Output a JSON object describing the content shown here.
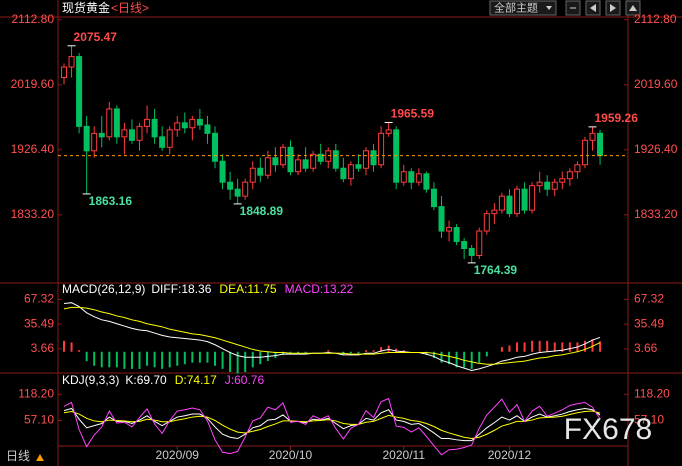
{
  "header": {
    "symbol": "现货黄金",
    "period": "<日线>",
    "theme_button": "全部主题"
  },
  "footer": {
    "period": "日线"
  },
  "watermark": "FX678",
  "chart_data": [
    {
      "type": "candlestick",
      "up_color": "#ff3c3c",
      "down_color": "#00c060",
      "last_line_color": "#ff9900",
      "ylim": [
        1737,
        2121
      ],
      "yticks": [
        {
          "value": 2112.8,
          "label": "2112.80"
        },
        {
          "value": 2019.6,
          "label": "2019.60"
        },
        {
          "value": 1926.4,
          "label": "1926.40"
        },
        {
          "value": 1833.2,
          "label": "1833.20"
        }
      ],
      "candles": [
        [
          2030,
          2050,
          2020,
          2045
        ],
        [
          2045,
          2075.47,
          2030,
          2060
        ],
        [
          2060,
          2065,
          1950,
          1960
        ],
        [
          1960,
          1975,
          1863.16,
          1925
        ],
        [
          1925,
          1960,
          1915,
          1950
        ],
        [
          1950,
          1975,
          1930,
          1945
        ],
        [
          1945,
          1995,
          1940,
          1985
        ],
        [
          1985,
          1990,
          1935,
          1945
        ],
        [
          1945,
          1965,
          1920,
          1955
        ],
        [
          1955,
          1970,
          1935,
          1940
        ],
        [
          1940,
          1965,
          1925,
          1960
        ],
        [
          1960,
          1990,
          1950,
          1970
        ],
        [
          1970,
          1985,
          1935,
          1945
        ],
        [
          1945,
          1960,
          1925,
          1930
        ],
        [
          1930,
          1960,
          1920,
          1955
        ],
        [
          1955,
          1975,
          1945,
          1965
        ],
        [
          1965,
          1980,
          1950,
          1958
        ],
        [
          1958,
          1975,
          1940,
          1970
        ],
        [
          1970,
          1985,
          1955,
          1962
        ],
        [
          1962,
          1975,
          1935,
          1950
        ],
        [
          1950,
          1960,
          1900,
          1910
        ],
        [
          1910,
          1920,
          1870,
          1880
        ],
        [
          1880,
          1895,
          1855,
          1870
        ],
        [
          1870,
          1885,
          1848.89,
          1860
        ],
        [
          1860,
          1885,
          1855,
          1880
        ],
        [
          1880,
          1910,
          1870,
          1900
        ],
        [
          1900,
          1915,
          1880,
          1890
        ],
        [
          1890,
          1925,
          1885,
          1915
        ],
        [
          1915,
          1930,
          1895,
          1905
        ],
        [
          1905,
          1935,
          1900,
          1930
        ],
        [
          1930,
          1940,
          1890,
          1895
        ],
        [
          1895,
          1920,
          1890,
          1912
        ],
        [
          1912,
          1930,
          1895,
          1900
        ],
        [
          1900,
          1925,
          1895,
          1920
        ],
        [
          1920,
          1935,
          1905,
          1910
        ],
        [
          1910,
          1930,
          1900,
          1925
        ],
        [
          1925,
          1935,
          1895,
          1900
        ],
        [
          1900,
          1915,
          1880,
          1885
        ],
        [
          1885,
          1910,
          1875,
          1905
        ],
        [
          1905,
          1920,
          1895,
          1900
        ],
        [
          1900,
          1930,
          1890,
          1925
        ],
        [
          1925,
          1935,
          1895,
          1905
        ],
        [
          1905,
          1960,
          1900,
          1950
        ],
        [
          1950,
          1965.59,
          1945,
          1955
        ],
        [
          1955,
          1960,
          1870,
          1880
        ],
        [
          1880,
          1905,
          1875,
          1895
        ],
        [
          1895,
          1900,
          1870,
          1880
        ],
        [
          1880,
          1900,
          1875,
          1892
        ],
        [
          1892,
          1895,
          1865,
          1870
        ],
        [
          1870,
          1880,
          1840,
          1845
        ],
        [
          1845,
          1860,
          1800,
          1810
        ],
        [
          1810,
          1825,
          1795,
          1815
        ],
        [
          1815,
          1820,
          1790,
          1795
        ],
        [
          1795,
          1800,
          1770,
          1785
        ],
        [
          1785,
          1790,
          1764.39,
          1775
        ],
        [
          1775,
          1815,
          1770,
          1810
        ],
        [
          1810,
          1840,
          1805,
          1835
        ],
        [
          1835,
          1850,
          1820,
          1840
        ],
        [
          1840,
          1865,
          1835,
          1860
        ],
        [
          1860,
          1870,
          1830,
          1835
        ],
        [
          1835,
          1875,
          1830,
          1870
        ],
        [
          1870,
          1880,
          1835,
          1840
        ],
        [
          1840,
          1880,
          1835,
          1875
        ],
        [
          1875,
          1895,
          1865,
          1880
        ],
        [
          1880,
          1890,
          1860,
          1870
        ],
        [
          1870,
          1885,
          1860,
          1880
        ],
        [
          1880,
          1895,
          1870,
          1885
        ],
        [
          1885,
          1900,
          1875,
          1895
        ],
        [
          1895,
          1910,
          1885,
          1905
        ],
        [
          1905,
          1945,
          1900,
          1940
        ],
        [
          1940,
          1959.26,
          1925,
          1950
        ],
        [
          1950,
          1955,
          1905,
          1918
        ]
      ],
      "annotations": [
        {
          "x": 1,
          "value": 2075.47,
          "color": "#ff4b4b"
        },
        {
          "x": 3,
          "value": 1863.16,
          "color": "#4be0a0"
        },
        {
          "x": 23,
          "value": 1848.89,
          "color": "#4be0a0"
        },
        {
          "x": 43,
          "value": 1965.59,
          "color": "#ff4b4b"
        },
        {
          "x": 54,
          "value": 1764.39,
          "color": "#4be0a0"
        },
        {
          "x": 70,
          "value": 1959.26,
          "color": "#ff4b4b"
        }
      ]
    },
    {
      "type": "macd",
      "title": "MACD(26,12,9)",
      "ylim": [
        -26,
        87
      ],
      "yticks": [
        67.32,
        35.49,
        3.66
      ],
      "up_color": "#ff3c3c",
      "down_color": "#00c060",
      "series": [
        {
          "name": "DIFF:18.36",
          "color": "#ffffff",
          "values": [
            62,
            63,
            58,
            50,
            45,
            41,
            39,
            36,
            33,
            30,
            28,
            27,
            24,
            21,
            19,
            18,
            17,
            16,
            15,
            13,
            9,
            4,
            -1,
            -5,
            -7,
            -7,
            -7,
            -6,
            -5,
            -3,
            -3,
            -3,
            -3,
            -2,
            -2,
            -1,
            -2,
            -4,
            -4,
            -4,
            -2,
            -2,
            1,
            3,
            1,
            0,
            -1,
            -1,
            -3,
            -6,
            -11,
            -14,
            -18,
            -21,
            -24,
            -22,
            -19,
            -16,
            -12,
            -10,
            -7,
            -6,
            -3,
            -1,
            0,
            1,
            2,
            4,
            6,
            10,
            15,
            18.36
          ]
        },
        {
          "name": "DEA:11.75",
          "color": "#ffff00",
          "values": [
            55,
            57,
            57,
            56,
            54,
            51,
            49,
            46,
            44,
            41,
            39,
            36,
            34,
            32,
            29,
            27,
            25,
            23,
            22,
            20,
            18,
            15,
            12,
            9,
            6,
            3,
            1,
            0,
            -1,
            -1,
            -2,
            -2,
            -2,
            -2,
            -2,
            -2,
            -2,
            -2,
            -3,
            -3,
            -3,
            -3,
            -2,
            -1,
            -1,
            -1,
            -1,
            -1,
            -1,
            -2,
            -4,
            -6,
            -8,
            -11,
            -13,
            -15,
            -16,
            -16,
            -15,
            -14,
            -13,
            -12,
            -10,
            -8,
            -7,
            -5,
            -4,
            -2,
            0,
            3,
            7,
            11.75
          ]
        },
        {
          "name": "MACD:13.22",
          "color": "#ff44ff",
          "bars": true,
          "values": [
            14,
            12,
            2,
            -12,
            -18,
            -20,
            -20,
            -20,
            -22,
            -22,
            -22,
            -18,
            -20,
            -22,
            -20,
            -18,
            -16,
            -14,
            -14,
            -14,
            -18,
            -22,
            -26,
            -28,
            -26,
            -20,
            -16,
            -12,
            -8,
            -4,
            -2,
            -2,
            -2,
            0,
            0,
            2,
            0,
            -4,
            -2,
            -2,
            2,
            2,
            6,
            8,
            4,
            2,
            0,
            0,
            -4,
            -8,
            -14,
            -16,
            -20,
            -20,
            -22,
            -14,
            -6,
            0,
            6,
            8,
            12,
            12,
            14,
            14,
            14,
            12,
            12,
            12,
            12,
            14,
            16,
            13.22
          ]
        }
      ]
    },
    {
      "type": "line",
      "title": "KDJ(9,3,3)",
      "ylim": [
        -49,
        163
      ],
      "yticks": [
        {
          "value": 118.2,
          "label": "118.20"
        },
        {
          "value": 57.1,
          "label": "57.10"
        }
      ],
      "xticks": [
        {
          "value": 15,
          "label": "2020/09"
        },
        {
          "value": 30,
          "label": "2020/10"
        },
        {
          "value": 45,
          "label": "2020/11"
        },
        {
          "value": 59,
          "label": "2020/12"
        }
      ],
      "series": [
        {
          "name": "K:69.70",
          "color": "#ffffff",
          "values": [
            80,
            85,
            60,
            40,
            45,
            50,
            65,
            55,
            55,
            50,
            58,
            68,
            55,
            45,
            55,
            65,
            68,
            72,
            72,
            62,
            42,
            25,
            18,
            15,
            25,
            40,
            45,
            58,
            60,
            70,
            55,
            55,
            52,
            60,
            58,
            62,
            50,
            38,
            45,
            48,
            62,
            58,
            75,
            82,
            58,
            55,
            48,
            50,
            40,
            28,
            15,
            15,
            12,
            10,
            10,
            25,
            40,
            52,
            65,
            58,
            68,
            55,
            65,
            72,
            65,
            68,
            72,
            78,
            82,
            85,
            82,
            69.7
          ]
        },
        {
          "name": "D:74.17",
          "color": "#ffff00",
          "values": [
            75,
            78,
            72,
            62,
            56,
            54,
            58,
            57,
            56,
            54,
            55,
            60,
            58,
            54,
            54,
            58,
            61,
            65,
            67,
            65,
            57,
            46,
            37,
            30,
            28,
            32,
            36,
            43,
            49,
            56,
            56,
            55,
            54,
            56,
            57,
            59,
            56,
            50,
            48,
            48,
            53,
            55,
            62,
            69,
            65,
            62,
            57,
            55,
            50,
            43,
            34,
            28,
            23,
            18,
            15,
            18,
            25,
            34,
            44,
            49,
            55,
            55,
            58,
            63,
            64,
            65,
            67,
            71,
            75,
            78,
            79,
            74.17
          ]
        },
        {
          "name": "J:60.76",
          "color": "#ff44ff",
          "values": [
            90,
            99,
            36,
            -4,
            23,
            42,
            79,
            51,
            53,
            42,
            64,
            84,
            49,
            27,
            57,
            79,
            82,
            86,
            82,
            56,
            12,
            -17,
            -20,
            -15,
            19,
            56,
            63,
            88,
            82,
            98,
            53,
            55,
            48,
            68,
            60,
            68,
            38,
            14,
            39,
            48,
            80,
            64,
            101,
            108,
            44,
            41,
            30,
            40,
            20,
            -2,
            -23,
            -11,
            -10,
            -6,
            0,
            39,
            70,
            88,
            107,
            76,
            94,
            55,
            79,
            90,
            67,
            74,
            82,
            92,
            96,
            99,
            88,
            60.76
          ]
        }
      ]
    }
  ]
}
